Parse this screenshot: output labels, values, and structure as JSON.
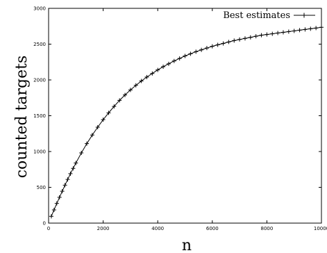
{
  "chart_data": {
    "type": "line",
    "xlabel": "n",
    "ylabel": "counted targets",
    "xlim": [
      0,
      10000
    ],
    "ylim": [
      0,
      3000
    ],
    "x_ticks": [
      0,
      2000,
      4000,
      6000,
      8000,
      10000
    ],
    "y_ticks": [
      0,
      500,
      1000,
      1500,
      2000,
      2500,
      3000
    ],
    "grid": false,
    "legend_position": "top-right",
    "marker": "+",
    "series": [
      {
        "name": "Best estimates",
        "x": [
          100,
          200,
          300,
          400,
          500,
          600,
          700,
          800,
          900,
          1000,
          1200,
          1400,
          1600,
          1800,
          2000,
          2200,
          2400,
          2600,
          2800,
          3000,
          3200,
          3400,
          3600,
          3800,
          4000,
          4200,
          4400,
          4600,
          4800,
          5000,
          5200,
          5400,
          5600,
          5800,
          6000,
          6200,
          6400,
          6600,
          6800,
          7000,
          7200,
          7400,
          7600,
          7800,
          8000,
          8200,
          8400,
          8600,
          8800,
          9000,
          9200,
          9400,
          9600,
          9800,
          10000
        ],
        "y": [
          95,
          185,
          275,
          360,
          445,
          530,
          610,
          690,
          765,
          840,
          980,
          1110,
          1230,
          1340,
          1445,
          1540,
          1630,
          1715,
          1790,
          1860,
          1925,
          1985,
          2040,
          2090,
          2140,
          2185,
          2225,
          2265,
          2300,
          2335,
          2365,
          2395,
          2420,
          2445,
          2470,
          2490,
          2510,
          2530,
          2550,
          2565,
          2580,
          2595,
          2610,
          2625,
          2635,
          2645,
          2655,
          2665,
          2675,
          2685,
          2695,
          2705,
          2715,
          2725,
          2735
        ]
      }
    ]
  }
}
